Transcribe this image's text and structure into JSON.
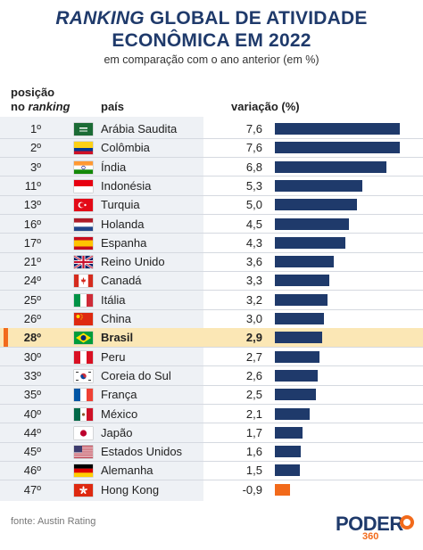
{
  "header": {
    "title_italic": "RANKING",
    "title_rest": "GLOBAL DE ATIVIDADE",
    "title_line2": "ECONÔMICA EM 2022",
    "subtitle": "em comparação com o ano anterior (em %)"
  },
  "columns": {
    "rank_line1": "posição",
    "rank_line2_prefix": "no",
    "rank_line2_italic": "ranking",
    "country": "país",
    "value": "variação (%)"
  },
  "colors": {
    "bar": "#1f3a6b",
    "negative_bar": "#f26a1b",
    "highlight": "#fbe7b5",
    "accent": "#f26a1b",
    "title": "#1f3a6b"
  },
  "chart_data": {
    "type": "bar",
    "orientation": "horizontal",
    "highlight": "Brasil",
    "rows": [
      {
        "rank": "1º",
        "country": "Arábia Saudita",
        "value": 7.6,
        "label": "7,6",
        "flag": "saudi-arabia"
      },
      {
        "rank": "2º",
        "country": "Colômbia",
        "value": 7.6,
        "label": "7,6",
        "flag": "colombia"
      },
      {
        "rank": "3º",
        "country": "Índia",
        "value": 6.8,
        "label": "6,8",
        "flag": "india"
      },
      {
        "rank": "11º",
        "country": "Indonésia",
        "value": 5.3,
        "label": "5,3",
        "flag": "indonesia"
      },
      {
        "rank": "13º",
        "country": "Turquia",
        "value": 5.0,
        "label": "5,0",
        "flag": "turkey"
      },
      {
        "rank": "16º",
        "country": "Holanda",
        "value": 4.5,
        "label": "4,5",
        "flag": "netherlands"
      },
      {
        "rank": "17º",
        "country": "Espanha",
        "value": 4.3,
        "label": "4,3",
        "flag": "spain"
      },
      {
        "rank": "21º",
        "country": "Reino Unido",
        "value": 3.6,
        "label": "3,6",
        "flag": "united-kingdom"
      },
      {
        "rank": "24º",
        "country": "Canadá",
        "value": 3.3,
        "label": "3,3",
        "flag": "canada"
      },
      {
        "rank": "25º",
        "country": "Itália",
        "value": 3.2,
        "label": "3,2",
        "flag": "italy"
      },
      {
        "rank": "26º",
        "country": "China",
        "value": 3.0,
        "label": "3,0",
        "flag": "china"
      },
      {
        "rank": "28º",
        "country": "Brasil",
        "value": 2.9,
        "label": "2,9",
        "flag": "brazil"
      },
      {
        "rank": "30º",
        "country": "Peru",
        "value": 2.7,
        "label": "2,7",
        "flag": "peru"
      },
      {
        "rank": "33º",
        "country": "Coreia do Sul",
        "value": 2.6,
        "label": "2,6",
        "flag": "south-korea"
      },
      {
        "rank": "35º",
        "country": "França",
        "value": 2.5,
        "label": "2,5",
        "flag": "france"
      },
      {
        "rank": "40º",
        "country": "México",
        "value": 2.1,
        "label": "2,1",
        "flag": "mexico"
      },
      {
        "rank": "44º",
        "country": "Japão",
        "value": 1.7,
        "label": "1,7",
        "flag": "japan"
      },
      {
        "rank": "45º",
        "country": "Estados Unidos",
        "value": 1.6,
        "label": "1,6",
        "flag": "united-states"
      },
      {
        "rank": "46º",
        "country": "Alemanha",
        "value": 1.5,
        "label": "1,5",
        "flag": "germany"
      },
      {
        "rank": "47º",
        "country": "Hong Kong",
        "value": -0.9,
        "label": "-0,9",
        "flag": "hong-kong"
      }
    ]
  },
  "footer": {
    "source": "fonte: Austin Rating",
    "logo_word": "PODER",
    "logo_number": "360"
  }
}
